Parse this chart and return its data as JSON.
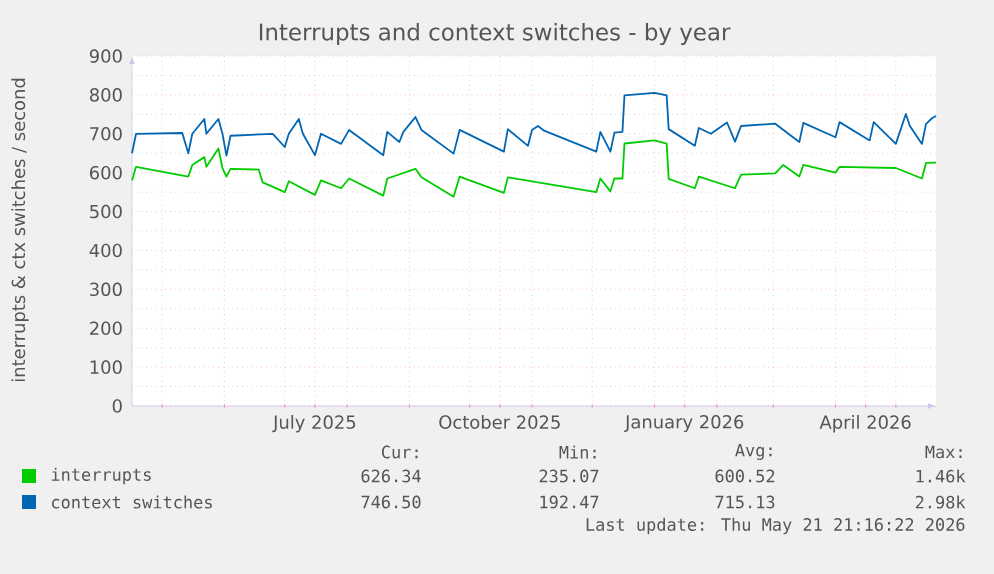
{
  "chart_data": {
    "type": "line",
    "title": "Interrupts and context switches - by year",
    "ylabel": "interrupts & ctx switches / second",
    "xlim": [
      "2025-04-16",
      "2026-05-21"
    ],
    "ylim": [
      0,
      900
    ],
    "xticks": [
      {
        "value": "2025-05-01",
        "label": null
      },
      {
        "value": "2025-06-01",
        "label": null
      },
      {
        "value": "2025-07-01",
        "label": null
      },
      {
        "value": "2025-07-16",
        "label": "July 2025"
      },
      {
        "value": "2025-08-01",
        "label": null
      },
      {
        "value": "2025-09-01",
        "label": null
      },
      {
        "value": "2025-10-01",
        "label": null
      },
      {
        "value": "2025-10-16",
        "label": "October 2025"
      },
      {
        "value": "2025-11-01",
        "label": null
      },
      {
        "value": "2025-12-01",
        "label": null
      },
      {
        "value": "2026-01-01",
        "label": null
      },
      {
        "value": "2026-01-16",
        "label": "January 2026"
      },
      {
        "value": "2026-02-01",
        "label": null
      },
      {
        "value": "2026-03-01",
        "label": null
      },
      {
        "value": "2026-04-01",
        "label": null
      },
      {
        "value": "2026-04-16",
        "label": "April 2026"
      },
      {
        "value": "2026-05-01",
        "label": null
      }
    ],
    "yticks": [
      0,
      {
        "value": 50,
        "label": null
      },
      100,
      {
        "value": 150,
        "label": null
      },
      200,
      {
        "value": 250,
        "label": null
      },
      300,
      {
        "value": 350,
        "label": null
      },
      400,
      {
        "value": 450,
        "label": null
      },
      500,
      {
        "value": 550,
        "label": null
      },
      600,
      {
        "value": 650,
        "label": null
      },
      700,
      {
        "value": 750,
        "label": null
      },
      800,
      {
        "value": 850,
        "label": null
      },
      900
    ],
    "grid": true,
    "legend": "bottom",
    "series": [
      {
        "name": "interrupts",
        "color": "#00cc00",
        "x": [
          "2025-04-16",
          "2025-04-18",
          "2025-05-14",
          "2025-05-16",
          "2025-05-22",
          "2025-05-23",
          "2025-05-29",
          "2025-05-31",
          "2025-06-02",
          "2025-06-04",
          "2025-06-18",
          "2025-06-20",
          "2025-07-01",
          "2025-07-03",
          "2025-07-16",
          "2025-07-19",
          "2025-07-29",
          "2025-08-02",
          "2025-08-19",
          "2025-08-21",
          "2025-09-04",
          "2025-09-07",
          "2025-09-23",
          "2025-09-26",
          "2025-10-18",
          "2025-10-20",
          "2025-12-03",
          "2025-12-05",
          "2025-12-10",
          "2025-12-12",
          "2025-12-16",
          "2025-12-17",
          "2026-01-01",
          "2026-01-07",
          "2026-01-08",
          "2026-01-21",
          "2026-01-23",
          "2026-02-10",
          "2026-02-13",
          "2026-03-02",
          "2026-03-06",
          "2026-03-14",
          "2026-03-16",
          "2026-04-01",
          "2026-04-03",
          "2026-05-01",
          "2026-05-14",
          "2026-05-16",
          "2026-05-21"
        ],
        "values": [
          580,
          615,
          590,
          620,
          640,
          615,
          662,
          612,
          590,
          610,
          608,
          575,
          550,
          578,
          543,
          580,
          560,
          585,
          541,
          585,
          610,
          588,
          538,
          590,
          548,
          588,
          550,
          585,
          552,
          585,
          585,
          675,
          683,
          675,
          584,
          560,
          590,
          560,
          595,
          598,
          620,
          590,
          620,
          600,
          615,
          612,
          585,
          625,
          626
        ]
      },
      {
        "name": "context switches",
        "color": "#0066b3",
        "x": [
          "2025-04-16",
          "2025-04-18",
          "2025-05-11",
          "2025-05-14",
          "2025-05-16",
          "2025-05-22",
          "2025-05-23",
          "2025-05-29",
          "2025-05-31",
          "2025-06-02",
          "2025-06-04",
          "2025-06-25",
          "2025-07-01",
          "2025-07-03",
          "2025-07-08",
          "2025-07-10",
          "2025-07-16",
          "2025-07-19",
          "2025-07-29",
          "2025-08-02",
          "2025-08-19",
          "2025-08-21",
          "2025-08-27",
          "2025-08-29",
          "2025-09-04",
          "2025-09-07",
          "2025-09-23",
          "2025-09-26",
          "2025-10-18",
          "2025-10-20",
          "2025-10-30",
          "2025-11-01",
          "2025-11-04",
          "2025-11-07",
          "2025-12-03",
          "2025-12-05",
          "2025-12-10",
          "2025-12-12",
          "2025-12-16",
          "2025-12-17",
          "2026-01-01",
          "2026-01-07",
          "2026-01-08",
          "2026-01-21",
          "2026-01-23",
          "2026-01-29",
          "2026-02-06",
          "2026-02-10",
          "2026-02-13",
          "2026-03-02",
          "2026-03-14",
          "2026-03-16",
          "2026-04-01",
          "2026-04-03",
          "2026-04-18",
          "2026-04-20",
          "2026-05-01",
          "2026-05-06",
          "2026-05-08",
          "2026-05-14",
          "2026-05-16",
          "2026-05-19",
          "2026-05-21"
        ],
        "values": [
          650,
          700,
          702,
          650,
          700,
          738,
          700,
          738,
          700,
          644,
          695,
          700,
          666,
          700,
          738,
          700,
          645,
          700,
          674,
          710,
          645,
          705,
          679,
          705,
          743,
          710,
          649,
          710,
          654,
          712,
          669,
          710,
          720,
          708,
          654,
          705,
          654,
          703,
          705,
          799,
          805,
          799,
          712,
          669,
          715,
          700,
          729,
          680,
          720,
          726,
          679,
          728,
          691,
          730,
          683,
          730,
          674,
          751,
          720,
          674,
          725,
          740,
          746
        ]
      }
    ],
    "annotations": [
      "Cur:",
      "Min:",
      "Avg:",
      "Max:",
      "626.34",
      "235.07",
      "600.52",
      "1.46k",
      "746.50",
      "192.47",
      "715.13",
      "2.98k",
      "Last update: Thu May 21 21:16:22 2026"
    ]
  }
}
